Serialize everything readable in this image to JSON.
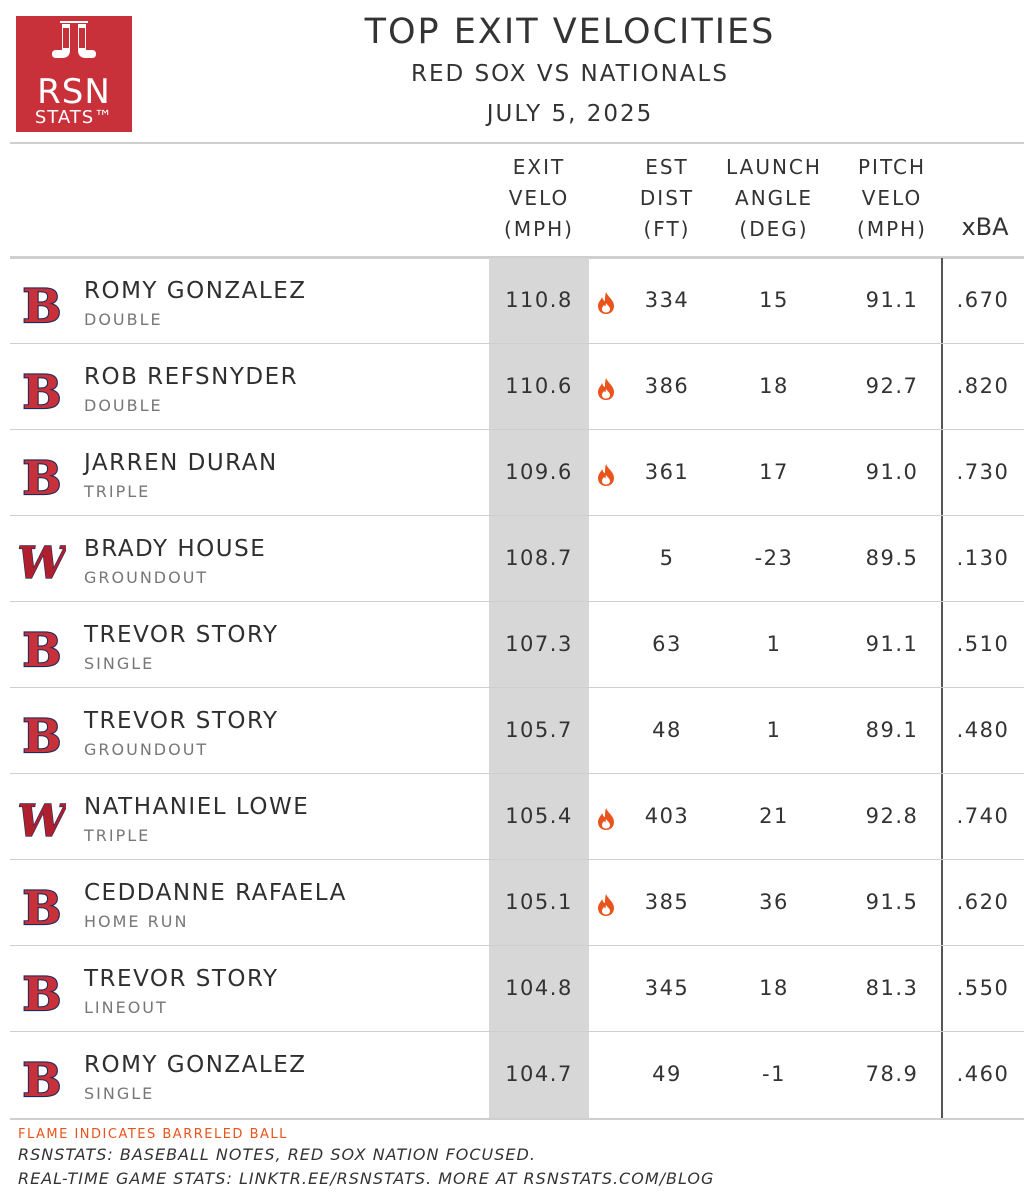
{
  "logo": {
    "line1": "RSN",
    "line2": "STATS™",
    "icon": "red-sox-hanging-socks-icon",
    "bg_color": "#c8313a"
  },
  "title": "TOP EXIT VELOCITIES",
  "subtitle": "RED SOX VS NATIONALS",
  "date": "JULY 5, 2025",
  "columns": {
    "exit_velo": [
      "EXIT",
      "VELO",
      "(MPH)"
    ],
    "est_dist": [
      "EST",
      "DIST",
      "(FT)"
    ],
    "launch_angle": [
      "LAUNCH",
      "ANGLE",
      "(DEG)"
    ],
    "pitch_velo": [
      "PITCH",
      "VELO",
      "(MPH)"
    ],
    "xba": "xBA"
  },
  "colors": {
    "red_sox": "#c8313a",
    "nationals": "#b01f2e",
    "navy": "#1f2a5a",
    "flame": "#e8541c",
    "band": "#d7d7d7"
  },
  "rows": [
    {
      "team": "red-sox",
      "player": "ROMY GONZALEZ",
      "result": "DOUBLE",
      "exit_velo": "110.8",
      "barrel": true,
      "est_dist": "334",
      "launch_angle": "15",
      "pitch_velo": "91.1",
      "xba": ".670"
    },
    {
      "team": "red-sox",
      "player": "ROB REFSNYDER",
      "result": "DOUBLE",
      "exit_velo": "110.6",
      "barrel": true,
      "est_dist": "386",
      "launch_angle": "18",
      "pitch_velo": "92.7",
      "xba": ".820"
    },
    {
      "team": "red-sox",
      "player": "JARREN DURAN",
      "result": "TRIPLE",
      "exit_velo": "109.6",
      "barrel": true,
      "est_dist": "361",
      "launch_angle": "17",
      "pitch_velo": "91.0",
      "xba": ".730"
    },
    {
      "team": "nationals",
      "player": "BRADY HOUSE",
      "result": "GROUNDOUT",
      "exit_velo": "108.7",
      "barrel": false,
      "est_dist": "5",
      "launch_angle": "-23",
      "pitch_velo": "89.5",
      "xba": ".130"
    },
    {
      "team": "red-sox",
      "player": "TREVOR STORY",
      "result": "SINGLE",
      "exit_velo": "107.3",
      "barrel": false,
      "est_dist": "63",
      "launch_angle": "1",
      "pitch_velo": "91.1",
      "xba": ".510"
    },
    {
      "team": "red-sox",
      "player": "TREVOR STORY",
      "result": "GROUNDOUT",
      "exit_velo": "105.7",
      "barrel": false,
      "est_dist": "48",
      "launch_angle": "1",
      "pitch_velo": "89.1",
      "xba": ".480"
    },
    {
      "team": "nationals",
      "player": "NATHANIEL LOWE",
      "result": "TRIPLE",
      "exit_velo": "105.4",
      "barrel": true,
      "est_dist": "403",
      "launch_angle": "21",
      "pitch_velo": "92.8",
      "xba": ".740"
    },
    {
      "team": "red-sox",
      "player": "CEDDANNE RAFAELA",
      "result": "HOME RUN",
      "exit_velo": "105.1",
      "barrel": true,
      "est_dist": "385",
      "launch_angle": "36",
      "pitch_velo": "91.5",
      "xba": ".620"
    },
    {
      "team": "red-sox",
      "player": "TREVOR STORY",
      "result": "LINEOUT",
      "exit_velo": "104.8",
      "barrel": false,
      "est_dist": "345",
      "launch_angle": "18",
      "pitch_velo": "81.3",
      "xba": ".550"
    },
    {
      "team": "red-sox",
      "player": "ROMY GONZALEZ",
      "result": "SINGLE",
      "exit_velo": "104.7",
      "barrel": false,
      "est_dist": "49",
      "launch_angle": "-1",
      "pitch_velo": "78.9",
      "xba": ".460"
    }
  ],
  "footer": {
    "legend": "FLAME INDICATES BARRELED BALL",
    "line1": "RSNSTATS: BASEBALL NOTES, RED SOX NATION FOCUSED.",
    "line2": "REAL-TIME GAME STATS: LINKTR.EE/RSNSTATS. MORE AT RSNSTATS.COM/BLOG"
  }
}
